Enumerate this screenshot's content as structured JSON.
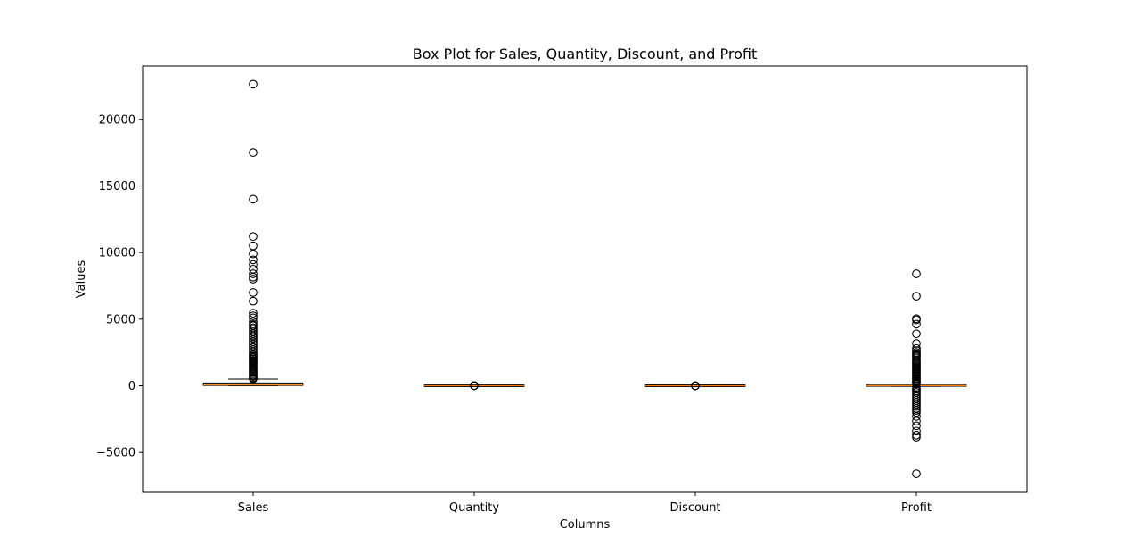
{
  "chart_data": {
    "type": "box",
    "title": "Box Plot for Sales, Quantity, Discount, and Profit",
    "xlabel": "Columns",
    "ylabel": "Values",
    "ylim": [
      -8000,
      24000
    ],
    "yticks": [
      -5000,
      0,
      5000,
      10000,
      15000,
      20000
    ],
    "ytick_labels": [
      "−5000",
      "0",
      "5000",
      "10000",
      "15000",
      "20000"
    ],
    "grid": false,
    "colors": {
      "box_fill": "#fcd5a8",
      "median": "#ff7f0e",
      "stroke": "#000000"
    },
    "categories": [
      "Sales",
      "Quantity",
      "Discount",
      "Profit"
    ],
    "boxes": [
      {
        "label": "Sales",
        "whislo": 0.4,
        "q1": 17,
        "med": 54,
        "q3": 210,
        "whishi": 499,
        "fliers": [
          22638,
          17500,
          14000,
          11200,
          10500,
          9900,
          9450,
          9100,
          8750,
          8400,
          8150,
          8000,
          7000,
          6350,
          5450,
          5250,
          5100,
          4800,
          4600,
          4500,
          4350,
          4200,
          4050,
          3900,
          3750,
          3600,
          3450,
          3300,
          3150,
          3000,
          2850,
          2700,
          2550,
          2400,
          2300,
          2200,
          2100,
          2000,
          1900,
          1800,
          1700,
          1600,
          1500,
          1400,
          1300,
          1200,
          1100,
          1000,
          900,
          800,
          700,
          600,
          550,
          520
        ]
      },
      {
        "label": "Quantity",
        "whislo": 1,
        "q1": 2,
        "med": 3,
        "q3": 5,
        "whishi": 9,
        "fliers": [
          10,
          11,
          12,
          13,
          14
        ]
      },
      {
        "label": "Discount",
        "whislo": 0,
        "q1": 0,
        "med": 0.2,
        "q3": 0.2,
        "whishi": 0.5,
        "fliers": [
          0.6,
          0.7,
          0.8
        ]
      },
      {
        "label": "Profit",
        "whislo": -39,
        "q1": 1.7,
        "med": 8.7,
        "q3": 29,
        "whishi": 70,
        "fliers": [
          8400,
          6720,
          5040,
          4950,
          4630,
          3900,
          3180,
          2800,
          2650,
          2500,
          2400,
          2300,
          2200,
          2100,
          1950,
          1850,
          1750,
          1650,
          1550,
          1450,
          1350,
          1250,
          1150,
          1050,
          950,
          850,
          750,
          650,
          550,
          450,
          350,
          250,
          150,
          -120,
          -250,
          -380,
          -500,
          -650,
          -800,
          -950,
          -1100,
          -1250,
          -1400,
          -1550,
          -1700,
          -1850,
          -2000,
          -2300,
          -2650,
          -3000,
          -3400,
          -3700,
          -3850,
          -6600
        ]
      }
    ]
  }
}
